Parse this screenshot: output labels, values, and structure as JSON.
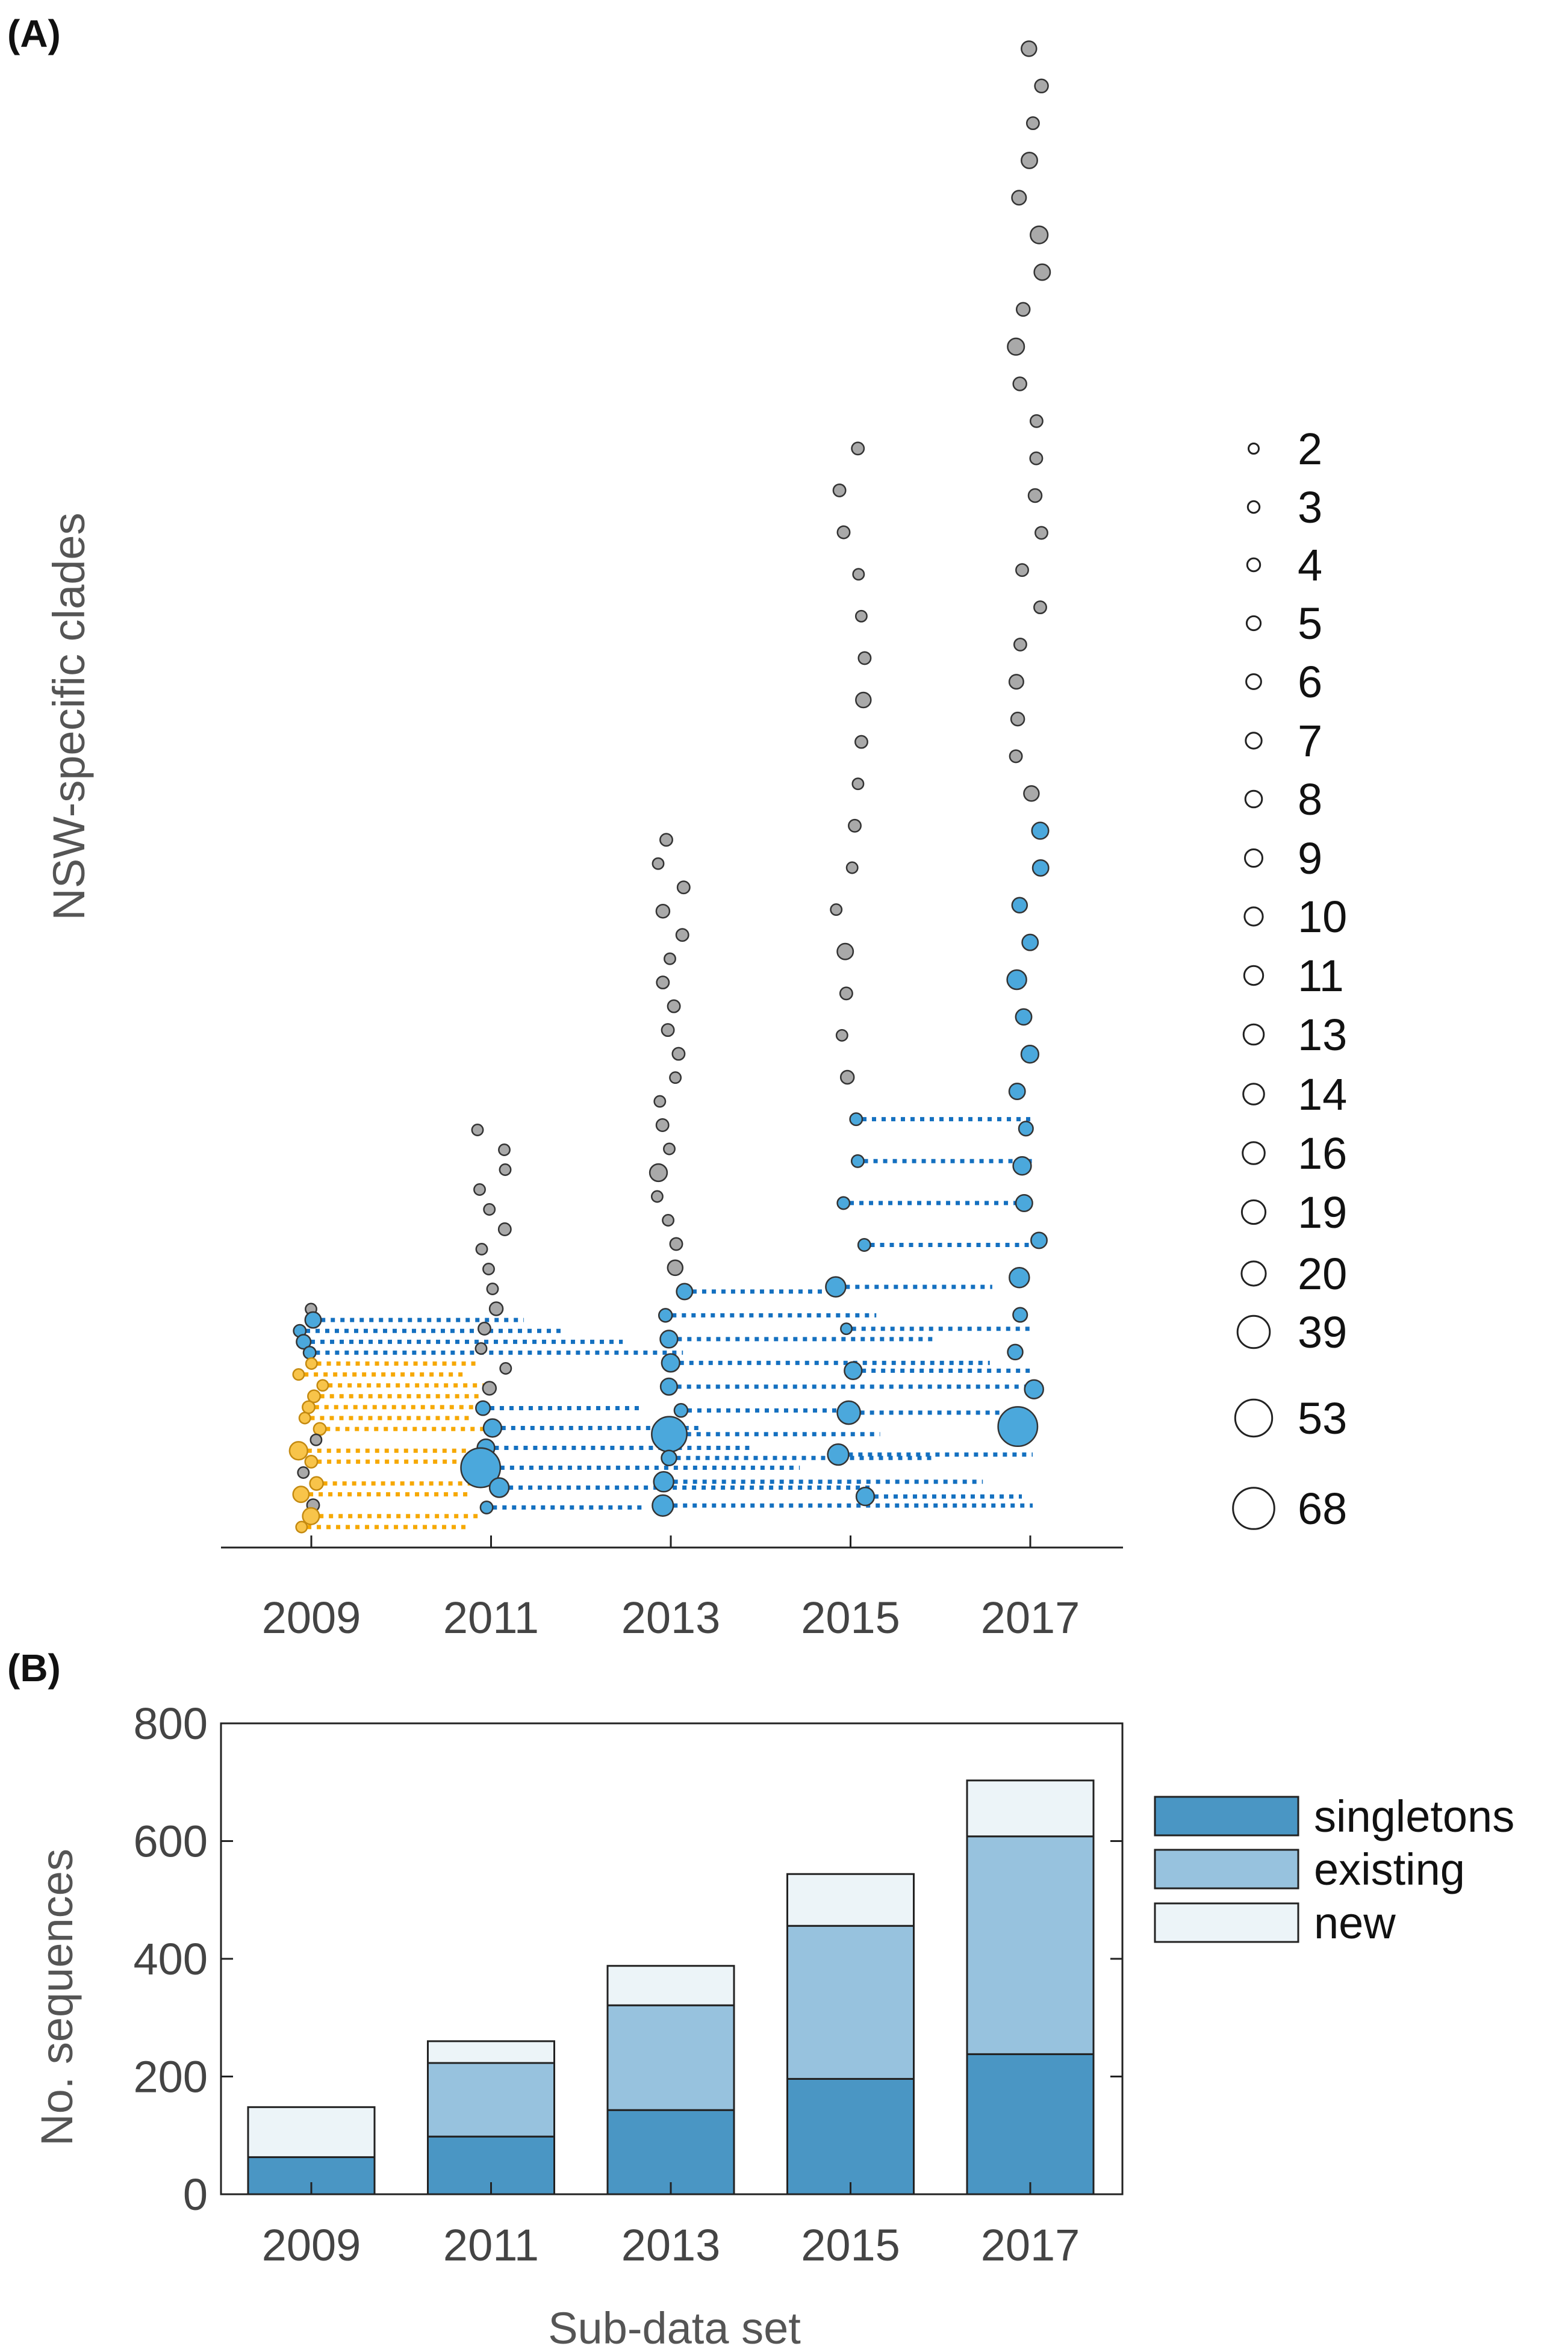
{
  "panel_a": {
    "label": "(A)",
    "ylabel": "NSW-specific clades",
    "x_ticks": [
      "2009",
      "2011",
      "2013",
      "2015",
      "2017"
    ],
    "size_legend": [
      "2",
      "3",
      "4",
      "5",
      "6",
      "7",
      "8",
      "9",
      "10",
      "11",
      "13",
      "14",
      "16",
      "19",
      "20",
      "39",
      "53",
      "68"
    ]
  },
  "panel_b": {
    "label": "(B)"
  },
  "colors": {
    "gray": "#a9a9a9",
    "blue": "#4ba8dc",
    "blue_link": "#1470c0",
    "yellow": "#f8c44a",
    "orange_link": "#f6a800",
    "red_outline": "#ec3a28",
    "singletons": "#4a96c4",
    "existing": "#97c2de",
    "new": "#ecf4f8"
  },
  "chart_data": [
    {
      "type": "scatter",
      "title": "(A)",
      "xlabel": "",
      "ylabel": "NSW-specific clades",
      "x_ticks": [
        2009,
        2011,
        2013,
        2015,
        2017
      ],
      "size_legend_values": [
        2,
        3,
        4,
        5,
        6,
        7,
        8,
        9,
        10,
        11,
        13,
        14,
        16,
        19,
        20,
        39,
        53,
        68
      ],
      "clades": [
        {
          "year": 2009,
          "cluster": 1,
          "count": 3
        },
        {
          "year": 2009,
          "cluster": 2,
          "count": 8
        },
        {
          "year": 2009,
          "cluster": 2,
          "count": 4
        },
        {
          "year": 2009,
          "cluster": 2,
          "count": 6
        },
        {
          "year": 2009,
          "cluster": 2,
          "count": 4
        },
        {
          "year": 2009,
          "cluster": 3,
          "count": 3
        },
        {
          "year": 2009,
          "cluster": 3,
          "count": 3
        },
        {
          "year": 2009,
          "cluster": 3,
          "count": 3
        },
        {
          "year": 2009,
          "cluster": 3,
          "count": 4
        },
        {
          "year": 2009,
          "cluster": 3,
          "count": 4
        },
        {
          "year": 2009,
          "cluster": 3,
          "count": 3
        },
        {
          "year": 2009,
          "cluster": 3,
          "count": 4
        },
        {
          "year": 2009,
          "cluster": 4,
          "count": 3
        },
        {
          "year": 2009,
          "cluster": 4,
          "count": 11
        },
        {
          "year": 2009,
          "cluster": 4,
          "count": 4
        },
        {
          "year": 2009,
          "cluster": 4,
          "count": 3
        },
        {
          "year": 2009,
          "cluster": 4,
          "count": 5
        },
        {
          "year": 2009,
          "cluster": 4,
          "count": 8
        },
        {
          "year": 2009,
          "cluster": 4,
          "count": 4
        },
        {
          "year": 2009,
          "cluster": 4,
          "count": 9
        },
        {
          "year": 2009,
          "cluster": 4,
          "count": 3
        },
        {
          "year": 2011,
          "cluster": 1,
          "count": 3
        },
        {
          "year": 2011,
          "cluster": 1,
          "count": 3
        },
        {
          "year": 2011,
          "cluster": 1,
          "count": 3
        },
        {
          "year": 2011,
          "cluster": 1,
          "count": 3
        },
        {
          "year": 2011,
          "cluster": 1,
          "count": 3
        },
        {
          "year": 2011,
          "cluster": 1,
          "count": 4
        },
        {
          "year": 2011,
          "cluster": 1,
          "count": 3
        },
        {
          "year": 2011,
          "cluster": 1,
          "count": 3
        },
        {
          "year": 2011,
          "cluster": 1,
          "count": 3
        },
        {
          "year": 2011,
          "cluster": 1,
          "count": 5
        },
        {
          "year": 2011,
          "cluster": 1,
          "count": 4
        },
        {
          "year": 2011,
          "cluster": 1,
          "count": 3
        },
        {
          "year": 2011,
          "cluster": 1,
          "count": 3
        },
        {
          "year": 2011,
          "cluster": 1,
          "count": 5
        },
        {
          "year": 2011,
          "cluster": 2,
          "count": 6
        },
        {
          "year": 2011,
          "cluster": 2,
          "count": 11
        },
        {
          "year": 2011,
          "cluster": 2,
          "count": 10
        },
        {
          "year": 2011,
          "cluster": 2,
          "count": 68
        },
        {
          "year": 2011,
          "cluster": 2,
          "count": 13
        },
        {
          "year": 2011,
          "cluster": 2,
          "count": 4
        },
        {
          "year": 2013,
          "cluster": 1,
          "count": 4
        },
        {
          "year": 2013,
          "cluster": 1,
          "count": 3
        },
        {
          "year": 2013,
          "cluster": 1,
          "count": 4
        },
        {
          "year": 2013,
          "cluster": 1,
          "count": 5
        },
        {
          "year": 2013,
          "cluster": 1,
          "count": 4
        },
        {
          "year": 2013,
          "cluster": 1,
          "count": 3
        },
        {
          "year": 2013,
          "cluster": 1,
          "count": 4
        },
        {
          "year": 2013,
          "cluster": 1,
          "count": 4
        },
        {
          "year": 2013,
          "cluster": 1,
          "count": 4
        },
        {
          "year": 2013,
          "cluster": 1,
          "count": 4
        },
        {
          "year": 2013,
          "cluster": 1,
          "count": 3
        },
        {
          "year": 2013,
          "cluster": 1,
          "count": 3
        },
        {
          "year": 2013,
          "cluster": 1,
          "count": 4
        },
        {
          "year": 2013,
          "cluster": 1,
          "count": 3
        },
        {
          "year": 2013,
          "cluster": 1,
          "count": 10
        },
        {
          "year": 2013,
          "cluster": 1,
          "count": 3
        },
        {
          "year": 2013,
          "cluster": 1,
          "count": 3
        },
        {
          "year": 2013,
          "cluster": 1,
          "count": 4
        },
        {
          "year": 2013,
          "cluster": 1,
          "count": 7
        },
        {
          "year": 2013,
          "cluster": 2,
          "count": 8
        },
        {
          "year": 2013,
          "cluster": 2,
          "count": 5
        },
        {
          "year": 2013,
          "cluster": 2,
          "count": 10
        },
        {
          "year": 2013,
          "cluster": 2,
          "count": 11
        },
        {
          "year": 2013,
          "cluster": 2,
          "count": 9
        },
        {
          "year": 2013,
          "cluster": 2,
          "count": 5
        },
        {
          "year": 2013,
          "cluster": 2,
          "count": 53
        },
        {
          "year": 2013,
          "cluster": 2,
          "count": 7
        },
        {
          "year": 2013,
          "cluster": 2,
          "count": 14
        },
        {
          "year": 2013,
          "cluster": 2,
          "count": 16
        },
        {
          "year": 2015,
          "cluster": 1,
          "count": 4
        },
        {
          "year": 2015,
          "cluster": 1,
          "count": 4
        },
        {
          "year": 2015,
          "cluster": 1,
          "count": 4
        },
        {
          "year": 2015,
          "cluster": 1,
          "count": 3
        },
        {
          "year": 2015,
          "cluster": 1,
          "count": 3
        },
        {
          "year": 2015,
          "cluster": 1,
          "count": 4
        },
        {
          "year": 2015,
          "cluster": 1,
          "count": 7
        },
        {
          "year": 2015,
          "cluster": 1,
          "count": 4
        },
        {
          "year": 2015,
          "cluster": 1,
          "count": 3
        },
        {
          "year": 2015,
          "cluster": 1,
          "count": 4
        },
        {
          "year": 2015,
          "cluster": 1,
          "count": 3
        },
        {
          "year": 2015,
          "cluster": 1,
          "count": 3
        },
        {
          "year": 2015,
          "cluster": 1,
          "count": 8
        },
        {
          "year": 2015,
          "cluster": 1,
          "count": 4
        },
        {
          "year": 2015,
          "cluster": 1,
          "count": 3
        },
        {
          "year": 2015,
          "cluster": 1,
          "count": 5
        },
        {
          "year": 2015,
          "cluster": 2,
          "count": 4
        },
        {
          "year": 2015,
          "cluster": 2,
          "count": 4
        },
        {
          "year": 2015,
          "cluster": 2,
          "count": 4
        },
        {
          "year": 2015,
          "cluster": 2,
          "count": 4
        },
        {
          "year": 2015,
          "cluster": 2,
          "count": 14
        },
        {
          "year": 2015,
          "cluster": 2,
          "count": 3
        },
        {
          "year": 2015,
          "cluster": 2,
          "count": 10
        },
        {
          "year": 2015,
          "cluster": 2,
          "count": 20
        },
        {
          "year": 2015,
          "cluster": 2,
          "count": 16
        },
        {
          "year": 2015,
          "cluster": 2,
          "count": 11
        },
        {
          "year": 2017,
          "cluster": 1,
          "count": 7
        },
        {
          "year": 2017,
          "cluster": 1,
          "count": 5
        },
        {
          "year": 2017,
          "cluster": 1,
          "count": 4
        },
        {
          "year": 2017,
          "cluster": 1,
          "count": 8
        },
        {
          "year": 2017,
          "cluster": 1,
          "count": 6
        },
        {
          "year": 2017,
          "cluster": 1,
          "count": 10
        },
        {
          "year": 2017,
          "cluster": 1,
          "count": 8
        },
        {
          "year": 2017,
          "cluster": 1,
          "count": 5
        },
        {
          "year": 2017,
          "cluster": 1,
          "count": 9
        },
        {
          "year": 2017,
          "cluster": 1,
          "count": 5
        },
        {
          "year": 2017,
          "cluster": 1,
          "count": 4
        },
        {
          "year": 2017,
          "cluster": 1,
          "count": 4
        },
        {
          "year": 2017,
          "cluster": 1,
          "count": 5
        },
        {
          "year": 2017,
          "cluster": 1,
          "count": 4
        },
        {
          "year": 2017,
          "cluster": 1,
          "count": 4
        },
        {
          "year": 2017,
          "cluster": 1,
          "count": 4
        },
        {
          "year": 2017,
          "cluster": 1,
          "count": 4
        },
        {
          "year": 2017,
          "cluster": 1,
          "count": 6
        },
        {
          "year": 2017,
          "cluster": 1,
          "count": 5
        },
        {
          "year": 2017,
          "cluster": 1,
          "count": 4
        },
        {
          "year": 2017,
          "cluster": 1,
          "count": 7
        },
        {
          "year": 2017,
          "cluster": 2,
          "count": 9
        },
        {
          "year": 2017,
          "cluster": 2,
          "count": 8
        },
        {
          "year": 2017,
          "cluster": 2,
          "count": 7
        },
        {
          "year": 2017,
          "cluster": 2,
          "count": 8
        },
        {
          "year": 2017,
          "cluster": 2,
          "count": 13
        },
        {
          "year": 2017,
          "cluster": 2,
          "count": 8
        },
        {
          "year": 2017,
          "cluster": 2,
          "count": 10
        },
        {
          "year": 2017,
          "cluster": 2,
          "count": 8
        },
        {
          "year": 2017,
          "cluster": 2,
          "count": 6
        },
        {
          "year": 2017,
          "cluster": 2,
          "count": 11
        },
        {
          "year": 2017,
          "cluster": 2,
          "count": 9
        },
        {
          "year": 2017,
          "cluster": 2,
          "count": 8
        },
        {
          "year": 2017,
          "cluster": 2,
          "count": 14
        },
        {
          "year": 2017,
          "cluster": 2,
          "count": 6
        },
        {
          "year": 2017,
          "cluster": 2,
          "count": 7
        },
        {
          "year": 2017,
          "cluster": 2,
          "count": 12
        },
        {
          "year": 2017,
          "cluster": 2,
          "count": 68
        }
      ],
      "categories": [
        "gray",
        "blue",
        "yellow"
      ]
    },
    {
      "type": "bar",
      "title": "(B)",
      "xlabel": "Sub-data set",
      "ylabel": "No. sequences",
      "categories": [
        "2009",
        "2011",
        "2013",
        "2015",
        "2017"
      ],
      "ylim": [
        0,
        800
      ],
      "yticks": [
        0,
        200,
        400,
        600,
        800
      ],
      "stacked": true,
      "series": [
        {
          "name": "singletons",
          "values": [
            63,
            98,
            143,
            196,
            238
          ]
        },
        {
          "name": "existing",
          "values": [
            0,
            125,
            178,
            260,
            370
          ]
        },
        {
          "name": "new",
          "values": [
            85,
            37,
            67,
            88,
            95
          ]
        }
      ],
      "legend": "right"
    }
  ]
}
